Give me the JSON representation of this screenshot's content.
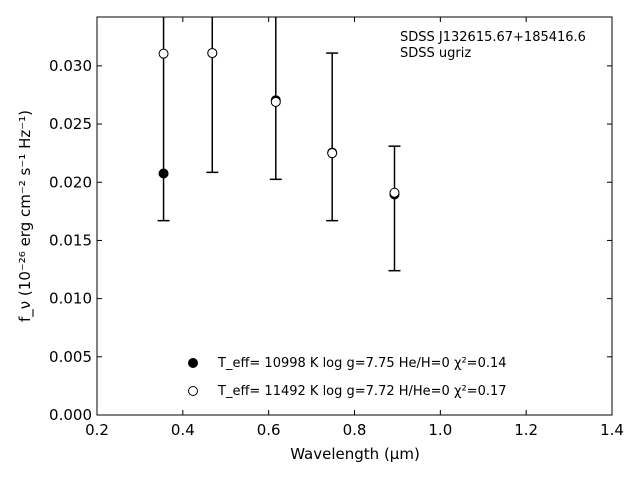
{
  "chart_data": {
    "type": "scatter",
    "xlabel": "Wavelength (μm)",
    "ylabel": "f_ν (10⁻²⁶ erg cm⁻² s⁻¹ Hz⁻¹)",
    "xlim": [
      0.2,
      1.4
    ],
    "ylim": [
      0.0,
      0.0342
    ],
    "xticks": [
      "0.2",
      "0.4",
      "0.6",
      "0.8",
      "1.0",
      "1.2",
      "1.4"
    ],
    "yticks": [
      "0.000",
      "0.005",
      "0.010",
      "0.015",
      "0.020",
      "0.025",
      "0.030"
    ],
    "annotations": [
      "SDSS J132615.67+185416.6",
      "SDSS ugriz"
    ],
    "observed": {
      "x": [
        0.3551,
        0.4686,
        0.6166,
        0.748,
        0.8932
      ],
      "y": [
        0.02075,
        0.0311,
        0.027,
        0.0225,
        0.019
      ],
      "err_low": [
        0.0167,
        0.02085,
        0.02025,
        0.0167,
        0.0124
      ],
      "err_high": [
        0.0342,
        0.0342,
        0.0342,
        0.0311,
        0.0231
      ]
    },
    "series": [
      {
        "name": "T_eff= 10998 K  log g=7.75  He/H=0  χ²=0.14",
        "marker": "filled-circle",
        "x": [
          0.3551,
          0.4686,
          0.6166,
          0.748,
          0.8932
        ],
        "y": [
          0.02075,
          0.0311,
          0.02705,
          0.02255,
          0.01895
        ]
      },
      {
        "name": "T_eff= 11492 K  log g=7.72  H/He=0  χ²=0.17",
        "marker": "open-circle",
        "x": [
          0.3551,
          0.4686,
          0.6166,
          0.748,
          0.8932
        ],
        "y": [
          0.03105,
          0.0311,
          0.0269,
          0.0225,
          0.0191
        ]
      }
    ],
    "legend_position": "bottom-center",
    "grid": false
  }
}
